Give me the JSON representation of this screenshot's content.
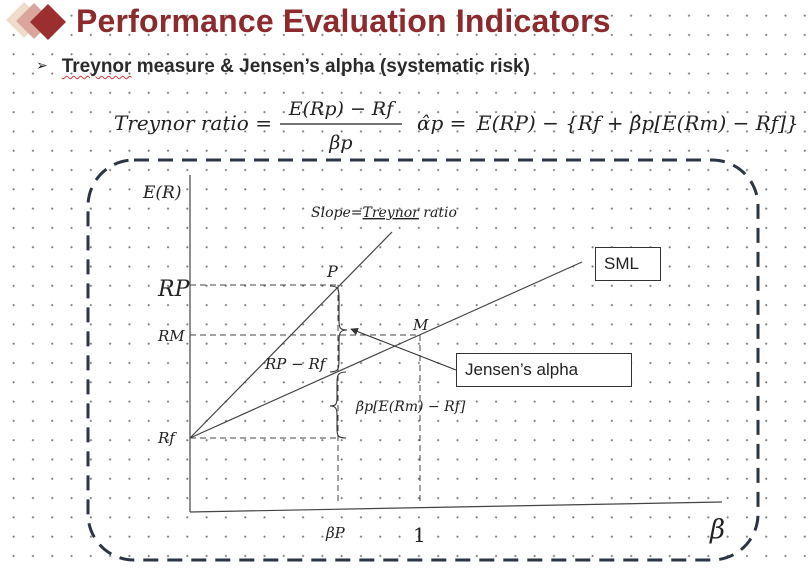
{
  "title": "Performance Evaluation Indicators",
  "subtitle": {
    "bullet": "➢",
    "text_before": "Treynor",
    "text_after": " measure & Jensen’s alpha (systematic risk)"
  },
  "formulas": {
    "treynor_lhs": "Treynor ratio =",
    "treynor_numerator": "E(Rp) − Rf",
    "treynor_denominator": "βp",
    "alpha_lhs": "α̂p =",
    "alpha_rhs": "E(RP) − {Rf + β̂p[E(Rm) − Rf]}"
  },
  "diagram": {
    "y_axis_label": "E(R)",
    "x_axis_label": "β",
    "slope_label_prefix": "Slope=",
    "slope_label_word": "Treynor",
    "slope_label_suffix": " ratio",
    "point_p": "P",
    "point_m": "M",
    "y_tick_rp": "RP",
    "y_tick_rm": "RM",
    "y_tick_rf": "Rf",
    "x_tick_bp": "βP",
    "x_tick_one": "1",
    "brace_upper_label": "RP − Rf",
    "brace_lower_label": "βp[E(Rm) − Rf]",
    "sml_label": "SML",
    "jensen_label": "Jensen’s alpha"
  },
  "colors": {
    "title": "#8c2a2e",
    "logo_dark": "#9b2f2f",
    "logo_mid": "#d9a59c",
    "logo_light": "#f0dccb",
    "frame": "#2b3544"
  }
}
